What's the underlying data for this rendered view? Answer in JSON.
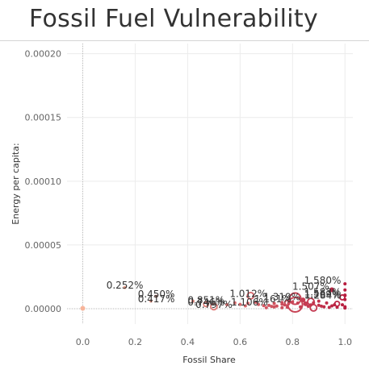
{
  "chart_data": {
    "type": "scatter",
    "title": "Fossil Fuel Vulnerability",
    "xlabel": "Fossil Share",
    "ylabel": "Energy per capita:",
    "xlim": [
      -0.06,
      1.03
    ],
    "ylim": [
      -1.2e-05,
      0.000208
    ],
    "x_ticks": [
      0.0,
      0.2,
      0.4,
      0.6,
      0.8,
      1.0
    ],
    "x_tick_labels": [
      "0.0",
      "0.2",
      "0.4",
      "0.6",
      "0.8",
      "1.0"
    ],
    "y_ticks": [
      0.0,
      5e-05,
      0.0001,
      0.00015,
      0.0002
    ],
    "y_tick_labels": [
      "0.00000",
      "0.00005",
      "0.00010",
      "0.00015",
      "0.00020"
    ],
    "grid": true,
    "zero_lines": true,
    "color_low": "#f7b49a",
    "color_high": "#b81d3f",
    "points": [
      {
        "x": 0.0,
        "y": 3e-07,
        "r": 3,
        "filled": true
      },
      {
        "x": 0.16,
        "y": 1.66e-05,
        "r": 2,
        "filled": true
      },
      {
        "x": 0.28,
        "y": 9.7e-06,
        "r": 2,
        "filled": true
      },
      {
        "x": 0.26,
        "y": 6.1e-06,
        "r": 2,
        "filled": true
      },
      {
        "x": 0.42,
        "y": 5.9e-06,
        "r": 2,
        "filled": true
      },
      {
        "x": 0.64,
        "y": 1.02e-05,
        "r": 4,
        "filled": false
      },
      {
        "x": 0.47,
        "y": 3.6e-06,
        "r": 3,
        "filled": false
      },
      {
        "x": 0.5,
        "y": 1.7e-06,
        "r": 4,
        "filled": false
      },
      {
        "x": 0.58,
        "y": 4.6e-06,
        "r": 2,
        "filled": true
      },
      {
        "x": 0.67,
        "y": 3.3e-06,
        "r": 2,
        "filled": true
      },
      {
        "x": 0.63,
        "y": 4.3e-06,
        "r": 2,
        "filled": true
      },
      {
        "x": 0.71,
        "y": 2.6e-06,
        "r": 2,
        "filled": true
      },
      {
        "x": 0.73,
        "y": 1.4e-06,
        "r": 2,
        "filled": true
      },
      {
        "x": 0.76,
        "y": 4.9e-06,
        "r": 2,
        "filled": true
      },
      {
        "x": 0.78,
        "y": 4.6e-06,
        "r": 3,
        "filled": false
      },
      {
        "x": 0.81,
        "y": 7.9e-06,
        "r": 7,
        "filled": false
      },
      {
        "x": 0.81,
        "y": 3.2e-06,
        "r": 9,
        "filled": false
      },
      {
        "x": 0.84,
        "y": 6.9e-06,
        "r": 3,
        "filled": true
      },
      {
        "x": 0.87,
        "y": 5.6e-06,
        "r": 4,
        "filled": false
      },
      {
        "x": 0.85,
        "y": 3.9e-06,
        "r": 3,
        "filled": true
      },
      {
        "x": 0.88,
        "y": 7e-07,
        "r": 4,
        "filled": false
      },
      {
        "x": 0.95,
        "y": 1.49e-05,
        "r": 3,
        "filled": true
      },
      {
        "x": 1.0,
        "y": 1.95e-05,
        "r": 2,
        "filled": true
      },
      {
        "x": 1.0,
        "y": 1.47e-05,
        "r": 2,
        "filled": true
      },
      {
        "x": 1.0,
        "y": 1.07e-05,
        "r": 2,
        "filled": true
      },
      {
        "x": 1.0,
        "y": 1.03e-05,
        "r": 2,
        "filled": true
      },
      {
        "x": 0.99,
        "y": 8.9e-06,
        "r": 3,
        "filled": false
      },
      {
        "x": 1.0,
        "y": 7.2e-06,
        "r": 2,
        "filled": true
      },
      {
        "x": 0.97,
        "y": 3.9e-06,
        "r": 3,
        "filled": false
      },
      {
        "x": 0.9,
        "y": 5.9e-06,
        "r": 2,
        "filled": true
      },
      {
        "x": 0.77,
        "y": 3e-06,
        "r": 2,
        "filled": true
      },
      {
        "x": 0.74,
        "y": 2.1e-06,
        "r": 2,
        "filled": true
      },
      {
        "x": 0.78,
        "y": 1.2e-06,
        "r": 2,
        "filled": true
      },
      {
        "x": 0.86,
        "y": 1.9e-06,
        "r": 2,
        "filled": true
      },
      {
        "x": 0.9,
        "y": 2.7e-06,
        "r": 2,
        "filled": true
      },
      {
        "x": 0.92,
        "y": 1.5e-06,
        "r": 2,
        "filled": true
      },
      {
        "x": 0.95,
        "y": 2.2e-06,
        "r": 2,
        "filled": true
      },
      {
        "x": 0.97,
        "y": 1.2e-06,
        "r": 2,
        "filled": true
      },
      {
        "x": 0.99,
        "y": 3.1e-06,
        "r": 2,
        "filled": true
      },
      {
        "x": 0.93,
        "y": 4.5e-06,
        "r": 2,
        "filled": true
      },
      {
        "x": 0.88,
        "y": 4.7e-06,
        "r": 2,
        "filled": true
      },
      {
        "x": 0.83,
        "y": 1.4e-06,
        "r": 2,
        "filled": true
      },
      {
        "x": 0.76,
        "y": 3.6e-06,
        "r": 2,
        "filled": true
      },
      {
        "x": 0.72,
        "y": 1.8e-06,
        "r": 2,
        "filled": true
      },
      {
        "x": 0.69,
        "y": 2.5e-06,
        "r": 2,
        "filled": true
      },
      {
        "x": 0.6,
        "y": 3.4e-06,
        "r": 2,
        "filled": true
      },
      {
        "x": 0.55,
        "y": 3.2e-06,
        "r": 2,
        "filled": true
      },
      {
        "x": 0.66,
        "y": 5.1e-06,
        "r": 2,
        "filled": true
      },
      {
        "x": 0.73,
        "y": 4.1e-06,
        "r": 2,
        "filled": true
      },
      {
        "x": 0.8,
        "y": 5.4e-06,
        "r": 2,
        "filled": true
      },
      {
        "x": 0.91,
        "y": 2e-06,
        "r": 2,
        "filled": true
      },
      {
        "x": 0.96,
        "y": 3.1e-06,
        "r": 2,
        "filled": true
      },
      {
        "x": 0.94,
        "y": 1e-06,
        "r": 2,
        "filled": true
      },
      {
        "x": 1.0,
        "y": 1.5e-06,
        "r": 2,
        "filled": true
      },
      {
        "x": 1.0,
        "y": 6e-07,
        "r": 2,
        "filled": true
      },
      {
        "x": 0.87,
        "y": 3e-06,
        "r": 2,
        "filled": true
      },
      {
        "x": 0.82,
        "y": 4.4e-06,
        "r": 2,
        "filled": true
      },
      {
        "x": 0.7,
        "y": 8e-07,
        "r": 2,
        "filled": true
      },
      {
        "x": 0.76,
        "y": 8e-07,
        "r": 2,
        "filled": true
      },
      {
        "x": 0.62,
        "y": 2.2e-06,
        "r": 2,
        "filled": true
      }
    ],
    "annotations": [
      {
        "text": "1.580%",
        "x": 0.985,
        "y": 1.95e-05,
        "anchor": "end"
      },
      {
        "text": "0.252%",
        "x": 0.09,
        "y": 1.57e-05,
        "anchor": "start"
      },
      {
        "text": "1.507%",
        "x": 0.94,
        "y": 1.49e-05,
        "anchor": "end"
      },
      {
        "text": "1.583%",
        "x": 0.985,
        "y": 1.05e-05,
        "anchor": "end"
      },
      {
        "text": "1.012%",
        "x": 0.56,
        "y": 9.1e-06,
        "anchor": "start"
      },
      {
        "text": "1.569%",
        "x": 0.985,
        "y": 9e-06,
        "anchor": "end"
      },
      {
        "text": "0.450%",
        "x": 0.21,
        "y": 8.8e-06,
        "anchor": "start"
      },
      {
        "text": "1.284%",
        "x": 0.845,
        "y": 7.8e-06,
        "anchor": "start"
      },
      {
        "text": "1.319%",
        "x": 0.83,
        "y": 6.7e-06,
        "anchor": "end"
      },
      {
        "text": "0.417%",
        "x": 0.21,
        "y": 5.2e-06,
        "anchor": "start"
      },
      {
        "text": "1.161%",
        "x": 0.795,
        "y": 5.1e-06,
        "anchor": "end"
      },
      {
        "text": "0.851%",
        "x": 0.4,
        "y": 4.2e-06,
        "anchor": "start"
      },
      {
        "text": "0.746%",
        "x": 0.4,
        "y": 2.4e-06,
        "anchor": "start"
      },
      {
        "text": "1.106%",
        "x": 0.565,
        "y": 2.4e-06,
        "anchor": "start"
      },
      {
        "text": "0.797%",
        "x": 0.43,
        "y": 5e-07,
        "anchor": "start"
      }
    ]
  }
}
